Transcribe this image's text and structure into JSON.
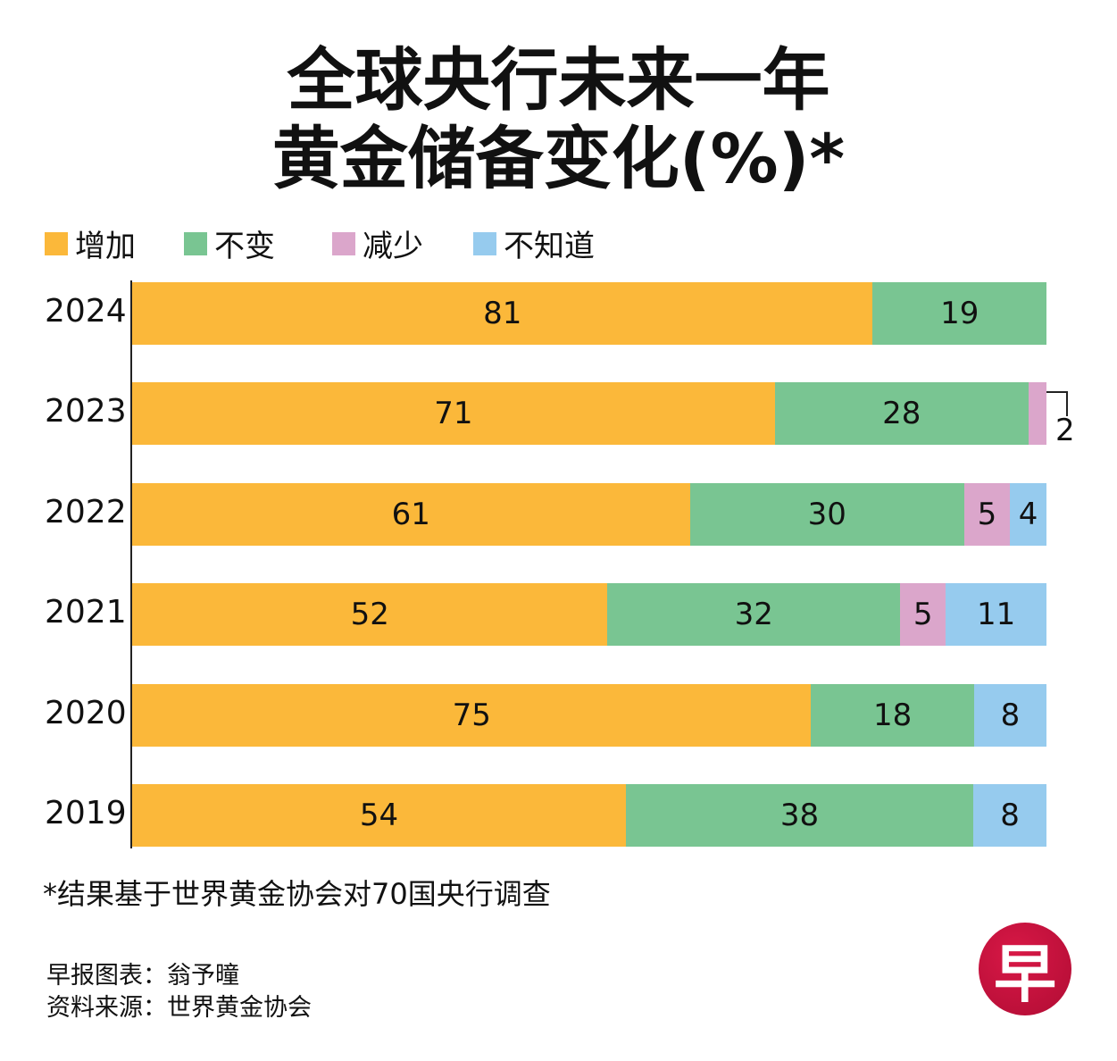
{
  "chart_data": {
    "type": "bar",
    "orientation": "horizontal",
    "stacked": true,
    "title": "全球央行未来一年黄金储备变化(%)*",
    "title_lines": [
      "全球央行未来一年",
      "黄金储备变化(%)*"
    ],
    "categories": [
      "2024",
      "2023",
      "2022",
      "2021",
      "2020",
      "2019"
    ],
    "series": [
      {
        "name": "增加",
        "color": "#FBB83A",
        "values": [
          81,
          71,
          61,
          52,
          75,
          54
        ]
      },
      {
        "name": "不变",
        "color": "#79C592",
        "values": [
          19,
          28,
          30,
          32,
          18,
          38
        ]
      },
      {
        "name": "减少",
        "color": "#DBA6CB",
        "values": [
          0,
          2,
          5,
          5,
          0,
          0
        ]
      },
      {
        "name": "不知道",
        "color": "#96CBEE",
        "values": [
          0,
          0,
          4,
          11,
          8,
          8
        ]
      }
    ],
    "legend_position": "top-left",
    "grid": false,
    "footnote": "*结果基于世界黄金协会对70国央行调查"
  },
  "credits": {
    "graphic": "早报图表：翁予曈",
    "source": "资料来源：世界黄金协会"
  },
  "logo": {
    "text": "早",
    "color": "#C8103B"
  }
}
